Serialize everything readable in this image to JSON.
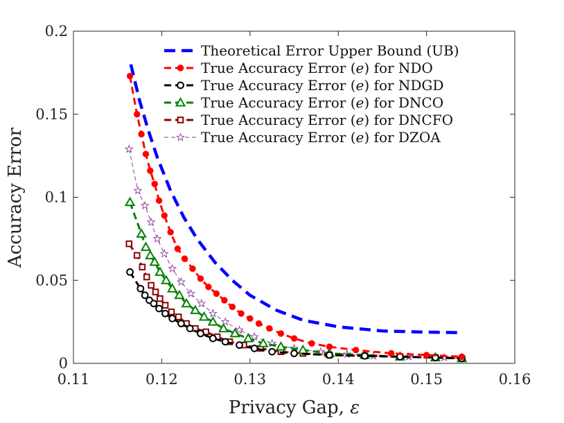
{
  "chart_data": {
    "type": "line",
    "title": "",
    "xlabel": "Privacy Gap, ",
    "xlabel_symbol": "ε",
    "ylabel": "Accuracy Error",
    "xlim": [
      0.11,
      0.16
    ],
    "ylim": [
      0,
      0.2
    ],
    "xticks": [
      "0.11",
      "0.12",
      "0.13",
      "0.14",
      "0.15",
      "0.16"
    ],
    "yticks": [
      "0",
      "0.05",
      "0.1",
      "0.15",
      "0.2"
    ],
    "legend_position": "top-right",
    "series": [
      {
        "name": "Theoretical Error Upper Bound (UB)",
        "legend_parts": [
          "Theoretical Error Upper Bound (UB)"
        ],
        "color": "#0000ff",
        "dash": "dashed-thick",
        "marker": "none",
        "x": [
          0.1165,
          0.1175,
          0.1185,
          0.1195,
          0.121,
          0.1225,
          0.124,
          0.126,
          0.128,
          0.13,
          0.133,
          0.136,
          0.14,
          0.145,
          0.15,
          0.154
        ],
        "values": [
          0.18,
          0.158,
          0.14,
          0.124,
          0.104,
          0.088,
          0.075,
          0.061,
          0.05,
          0.041,
          0.032,
          0.026,
          0.022,
          0.0195,
          0.0188,
          0.0185
        ]
      },
      {
        "name": "True Accuracy Error (e) for NDO",
        "legend_parts": [
          "True Accuracy Error (",
          "e",
          ") for NDO"
        ],
        "color": "#ff0000",
        "dash": "dashed",
        "marker": "dot",
        "x": [
          0.1164,
          0.1172,
          0.1177,
          0.1182,
          0.1187,
          0.1192,
          0.1197,
          0.1203,
          0.121,
          0.1218,
          0.1226,
          0.1235,
          0.1244,
          0.1253,
          0.1262,
          0.1271,
          0.128,
          0.129,
          0.13,
          0.131,
          0.1322,
          0.1335,
          0.135,
          0.137,
          0.139,
          0.142,
          0.146,
          0.15,
          0.154
        ],
        "values": [
          0.173,
          0.15,
          0.138,
          0.126,
          0.116,
          0.108,
          0.098,
          0.089,
          0.079,
          0.069,
          0.063,
          0.057,
          0.051,
          0.046,
          0.042,
          0.038,
          0.034,
          0.03,
          0.027,
          0.024,
          0.021,
          0.018,
          0.015,
          0.012,
          0.01,
          0.008,
          0.006,
          0.005,
          0.004
        ]
      },
      {
        "name": "True Accuracy Error (e) for NDGD",
        "legend_parts": [
          "True Accuracy Error (",
          "e",
          ") for NDGD"
        ],
        "color": "#000000",
        "dash": "dashed",
        "marker": "circle",
        "x": [
          0.1164,
          0.1176,
          0.1181,
          0.1186,
          0.1191,
          0.1197,
          0.1204,
          0.1212,
          0.1222,
          0.1232,
          0.1244,
          0.1258,
          0.1272,
          0.1288,
          0.1305,
          0.1325,
          0.135,
          0.139,
          0.143,
          0.147,
          0.151,
          0.154
        ],
        "values": [
          0.055,
          0.045,
          0.041,
          0.038,
          0.036,
          0.033,
          0.03,
          0.027,
          0.024,
          0.021,
          0.018,
          0.015,
          0.013,
          0.011,
          0.009,
          0.007,
          0.006,
          0.005,
          0.0045,
          0.004,
          0.0035,
          0.003
        ]
      },
      {
        "name": "True Accuracy Error (e) for DNCO",
        "legend_parts": [
          "True Accuracy Error (",
          "e",
          ") for DNCO"
        ],
        "color": "#008000",
        "dash": "dashed",
        "marker": "triangle",
        "x": [
          0.1164,
          0.1177,
          0.1182,
          0.1187,
          0.1192,
          0.1198,
          0.1205,
          0.1212,
          0.122,
          0.1228,
          0.1238,
          0.1248,
          0.1258,
          0.127,
          0.1283,
          0.1298,
          0.1315,
          0.1335,
          0.136,
          0.139,
          0.143,
          0.147,
          0.151,
          0.154
        ],
        "values": [
          0.097,
          0.078,
          0.07,
          0.065,
          0.061,
          0.055,
          0.05,
          0.045,
          0.041,
          0.036,
          0.032,
          0.028,
          0.025,
          0.021,
          0.018,
          0.015,
          0.012,
          0.01,
          0.008,
          0.006,
          0.005,
          0.004,
          0.0035,
          0.003
        ]
      },
      {
        "name": "True Accuracy Error (e) for DNCFO",
        "legend_parts": [
          "True Accuracy Error (",
          "e",
          ") for DNCFO"
        ],
        "color": "#8b0000",
        "dash": "dashed",
        "marker": "square",
        "x": [
          0.1163,
          0.1172,
          0.1178,
          0.1183,
          0.1188,
          0.1193,
          0.1198,
          0.1204,
          0.1211,
          0.1219,
          0.1228,
          0.1238,
          0.125,
          0.1263,
          0.1277,
          0.1293,
          0.1312,
          0.1335,
          0.136,
          0.139,
          0.143,
          0.147,
          0.151,
          0.154
        ],
        "values": [
          0.072,
          0.065,
          0.058,
          0.052,
          0.047,
          0.043,
          0.039,
          0.035,
          0.031,
          0.028,
          0.024,
          0.021,
          0.019,
          0.016,
          0.013,
          0.011,
          0.009,
          0.007,
          0.006,
          0.005,
          0.0045,
          0.004,
          0.0035,
          0.003
        ]
      },
      {
        "name": "True Accuracy Error (e) for DZOA",
        "legend_parts": [
          "True Accuracy Error (",
          "e",
          ") for DZOA"
        ],
        "color": "#8b3a9b",
        "dash": "dashed-thin",
        "marker": "star",
        "x": [
          0.1163,
          0.1173,
          0.1181,
          0.1188,
          0.1195,
          0.1203,
          0.1212,
          0.1222,
          0.1233,
          0.1245,
          0.1258,
          0.1272,
          0.1288,
          0.1305,
          0.1325,
          0.135,
          0.138,
          0.141,
          0.144,
          0.148,
          0.152,
          0.154
        ],
        "values": [
          0.129,
          0.104,
          0.095,
          0.085,
          0.075,
          0.066,
          0.057,
          0.049,
          0.042,
          0.036,
          0.03,
          0.025,
          0.02,
          0.016,
          0.012,
          0.009,
          0.007,
          0.0055,
          0.0045,
          0.004,
          0.0035,
          0.003
        ]
      }
    ]
  }
}
